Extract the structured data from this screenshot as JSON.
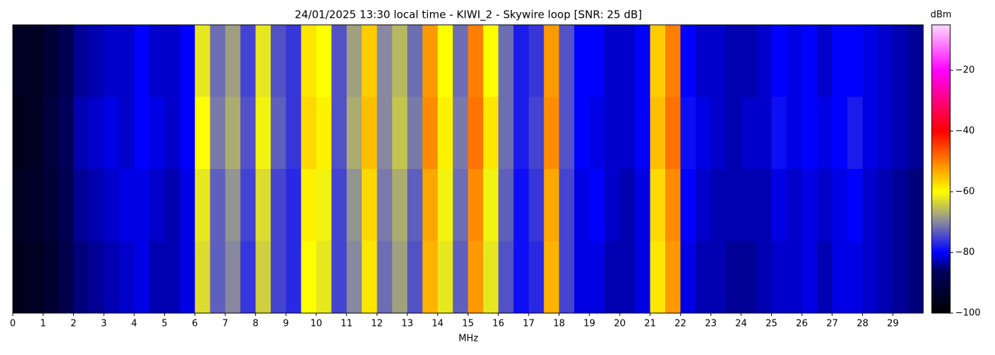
{
  "chart_data": {
    "type": "heatmap",
    "title": "24/01/2025 13:30 local time - KIWI_2 - Skywire loop [SNR: 25 dB]",
    "xlabel": "MHz",
    "colorbar_label": "dBm",
    "xlim": [
      0,
      30
    ],
    "xticks": [
      0,
      1,
      2,
      3,
      4,
      5,
      6,
      7,
      8,
      9,
      10,
      11,
      12,
      13,
      14,
      15,
      16,
      17,
      18,
      19,
      20,
      21,
      22,
      23,
      24,
      25,
      26,
      27,
      28,
      29
    ],
    "xbins": [
      0,
      0.5,
      1,
      1.5,
      2,
      2.5,
      3,
      3.5,
      4,
      4.5,
      5,
      5.5,
      6,
      6.5,
      7,
      7.5,
      8,
      8.5,
      9,
      9.5,
      10,
      10.5,
      11,
      11.5,
      12,
      12.5,
      13,
      13.5,
      14,
      14.5,
      15,
      15.5,
      16,
      16.5,
      17,
      17.5,
      18,
      18.5,
      19,
      19.5,
      20,
      20.5,
      21,
      21.5,
      22,
      22.5,
      23,
      23.5,
      24,
      24.5,
      25,
      25.5,
      26,
      26.5,
      27,
      27.5,
      28,
      28.5,
      29,
      29.5,
      30
    ],
    "zlim": [
      -100,
      -5
    ],
    "zticks": [
      {
        "value": -100,
        "label": "−100"
      },
      {
        "value": -80,
        "label": "−80"
      },
      {
        "value": -60,
        "label": "−60"
      },
      {
        "value": -40,
        "label": "−40"
      },
      {
        "value": -20,
        "label": "−20"
      }
    ],
    "colormap": [
      [
        -100,
        "#000000"
      ],
      [
        -86,
        "#000060"
      ],
      [
        -80,
        "#0000ff"
      ],
      [
        -70,
        "#8888a0"
      ],
      [
        -60,
        "#ffff00"
      ],
      [
        -40,
        "#ff0000"
      ],
      [
        -20,
        "#ff00ff"
      ],
      [
        -5,
        "#ffd8ff"
      ]
    ],
    "z": [
      [
        -95,
        -95,
        -92,
        -88,
        -84,
        -83,
        -82,
        -82,
        -80,
        -82,
        -82,
        -80,
        -62,
        -72,
        -68,
        -75,
        -62,
        -74,
        -76,
        -58,
        -60,
        -74,
        -68,
        -56,
        -70,
        -66,
        -72,
        -52,
        -60,
        -72,
        -50,
        -60,
        -72,
        -78,
        -76,
        -52,
        -74,
        -80,
        -80,
        -82,
        -82,
        -80,
        -56,
        -50,
        -80,
        -82,
        -82,
        -83,
        -83,
        -82,
        -80,
        -81,
        -80,
        -82,
        -80,
        -80,
        -81,
        -82,
        -83,
        -84
      ],
      [
        -96,
        -95,
        -91,
        -87,
        -83,
        -82,
        -81,
        -82,
        -80,
        -81,
        -82,
        -80,
        -60,
        -71,
        -67,
        -74,
        -61,
        -73,
        -76,
        -57,
        -59,
        -74,
        -67,
        -55,
        -70,
        -65,
        -71,
        -51,
        -59,
        -71,
        -49,
        -58,
        -72,
        -78,
        -75,
        -51,
        -74,
        -80,
        -81,
        -82,
        -82,
        -80,
        -55,
        -49,
        -79,
        -81,
        -82,
        -83,
        -82,
        -82,
        -79,
        -81,
        -80,
        -81,
        -80,
        -78,
        -81,
        -82,
        -83,
        -84
      ],
      [
        -95,
        -94,
        -92,
        -88,
        -84,
        -83,
        -82,
        -81,
        -81,
        -82,
        -83,
        -81,
        -62,
        -73,
        -69,
        -75,
        -63,
        -75,
        -77,
        -59,
        -61,
        -75,
        -69,
        -57,
        -71,
        -67,
        -73,
        -53,
        -61,
        -72,
        -51,
        -61,
        -73,
        -79,
        -76,
        -53,
        -75,
        -81,
        -80,
        -82,
        -83,
        -81,
        -57,
        -51,
        -80,
        -82,
        -83,
        -83,
        -83,
        -83,
        -81,
        -82,
        -81,
        -82,
        -81,
        -80,
        -82,
        -83,
        -84,
        -85
      ],
      [
        -96,
        -95,
        -93,
        -89,
        -85,
        -84,
        -83,
        -82,
        -81,
        -83,
        -83,
        -81,
        -63,
        -73,
        -70,
        -76,
        -64,
        -75,
        -77,
        -60,
        -62,
        -75,
        -70,
        -58,
        -72,
        -68,
        -74,
        -54,
        -62,
        -73,
        -52,
        -62,
        -74,
        -79,
        -77,
        -54,
        -75,
        -81,
        -81,
        -83,
        -83,
        -81,
        -58,
        -52,
        -81,
        -83,
        -83,
        -84,
        -84,
        -83,
        -82,
        -82,
        -81,
        -83,
        -81,
        -81,
        -82,
        -83,
        -84,
        -85
      ]
    ]
  }
}
